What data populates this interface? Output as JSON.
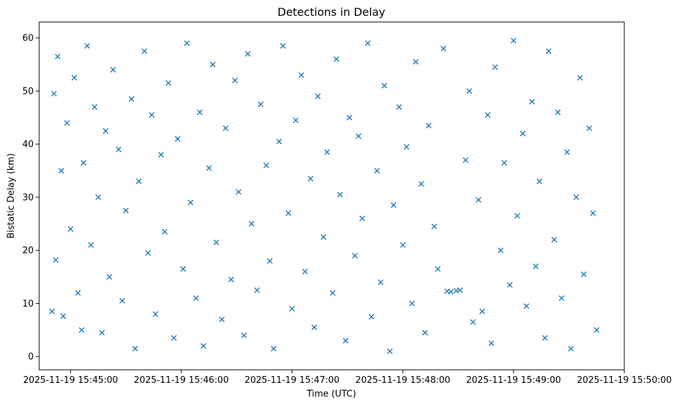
{
  "chart_data": {
    "type": "scatter",
    "title": "Detections in Delay",
    "xlabel": "Time (UTC)",
    "ylabel": "Bistatic Delay (km)",
    "x_axis_type": "datetime",
    "xlim": [
      "2025-11-19 15:44:43",
      "2025-11-19 15:50:00"
    ],
    "ylim": [
      -2.5,
      63
    ],
    "x_ticks": [
      "2025-11-19 15:45:00",
      "2025-11-19 15:46:00",
      "2025-11-19 15:47:00",
      "2025-11-19 15:48:00",
      "2025-11-19 15:49:00",
      "2025-11-19 15:50:00"
    ],
    "y_ticks": [
      "0",
      "10",
      "20",
      "30",
      "40",
      "50",
      "60"
    ],
    "grid": false,
    "marker": "x",
    "color": "#1f77b4",
    "series": [
      {
        "x": [
          "2025-11-19 15:44:50",
          "2025-11-19 15:44:51",
          "2025-11-19 15:44:52",
          "2025-11-19 15:44:53",
          "2025-11-19 15:44:55",
          "2025-11-19 15:44:56",
          "2025-11-19 15:44:58",
          "2025-11-19 15:45:00",
          "2025-11-19 15:45:02",
          "2025-11-19 15:45:04",
          "2025-11-19 15:45:06",
          "2025-11-19 15:45:07",
          "2025-11-19 15:45:09",
          "2025-11-19 15:45:11",
          "2025-11-19 15:45:13",
          "2025-11-19 15:45:15",
          "2025-11-19 15:45:17",
          "2025-11-19 15:45:19",
          "2025-11-19 15:45:21",
          "2025-11-19 15:45:23",
          "2025-11-19 15:45:26",
          "2025-11-19 15:45:28",
          "2025-11-19 15:45:30",
          "2025-11-19 15:45:33",
          "2025-11-19 15:45:35",
          "2025-11-19 15:45:37",
          "2025-11-19 15:45:40",
          "2025-11-19 15:45:42",
          "2025-11-19 15:45:44",
          "2025-11-19 15:45:46",
          "2025-11-19 15:45:49",
          "2025-11-19 15:45:51",
          "2025-11-19 15:45:53",
          "2025-11-19 15:45:56",
          "2025-11-19 15:45:58",
          "2025-11-19 15:46:01",
          "2025-11-19 15:46:03",
          "2025-11-19 15:46:05",
          "2025-11-19 15:46:08",
          "2025-11-19 15:46:10",
          "2025-11-19 15:46:12",
          "2025-11-19 15:46:15",
          "2025-11-19 15:46:17",
          "2025-11-19 15:46:19",
          "2025-11-19 15:46:22",
          "2025-11-19 15:46:24",
          "2025-11-19 15:46:27",
          "2025-11-19 15:46:29",
          "2025-11-19 15:46:31",
          "2025-11-19 15:46:34",
          "2025-11-19 15:46:36",
          "2025-11-19 15:46:38",
          "2025-11-19 15:46:41",
          "2025-11-19 15:46:43",
          "2025-11-19 15:46:46",
          "2025-11-19 15:46:48",
          "2025-11-19 15:46:50",
          "2025-11-19 15:46:53",
          "2025-11-19 15:46:55",
          "2025-11-19 15:46:58",
          "2025-11-19 15:47:00",
          "2025-11-19 15:47:02",
          "2025-11-19 15:47:05",
          "2025-11-19 15:47:07",
          "2025-11-19 15:47:10",
          "2025-11-19 15:47:12",
          "2025-11-19 15:47:14",
          "2025-11-19 15:47:17",
          "2025-11-19 15:47:19",
          "2025-11-19 15:47:22",
          "2025-11-19 15:47:24",
          "2025-11-19 15:47:26",
          "2025-11-19 15:47:29",
          "2025-11-19 15:47:31",
          "2025-11-19 15:47:34",
          "2025-11-19 15:47:36",
          "2025-11-19 15:47:38",
          "2025-11-19 15:47:41",
          "2025-11-19 15:47:43",
          "2025-11-19 15:47:46",
          "2025-11-19 15:47:48",
          "2025-11-19 15:47:50",
          "2025-11-19 15:47:53",
          "2025-11-19 15:47:55",
          "2025-11-19 15:47:58",
          "2025-11-19 15:48:00",
          "2025-11-19 15:48:02",
          "2025-11-19 15:48:05",
          "2025-11-19 15:48:07",
          "2025-11-19 15:48:10",
          "2025-11-19 15:48:12",
          "2025-11-19 15:48:14",
          "2025-11-19 15:48:17",
          "2025-11-19 15:48:19",
          "2025-11-19 15:48:22",
          "2025-11-19 15:48:24",
          "2025-11-19 15:48:26",
          "2025-11-19 15:48:29",
          "2025-11-19 15:48:31",
          "2025-11-19 15:48:34",
          "2025-11-19 15:48:36",
          "2025-11-19 15:48:38",
          "2025-11-19 15:48:41",
          "2025-11-19 15:48:43",
          "2025-11-19 15:48:46",
          "2025-11-19 15:48:48",
          "2025-11-19 15:48:50",
          "2025-11-19 15:48:53",
          "2025-11-19 15:48:55",
          "2025-11-19 15:48:58",
          "2025-11-19 15:49:00",
          "2025-11-19 15:49:02",
          "2025-11-19 15:49:05",
          "2025-11-19 15:49:07",
          "2025-11-19 15:49:10",
          "2025-11-19 15:49:12",
          "2025-11-19 15:49:14",
          "2025-11-19 15:49:17",
          "2025-11-19 15:49:19",
          "2025-11-19 15:49:22",
          "2025-11-19 15:49:24",
          "2025-11-19 15:49:26",
          "2025-11-19 15:49:29",
          "2025-11-19 15:49:31",
          "2025-11-19 15:49:34",
          "2025-11-19 15:49:36",
          "2025-11-19 15:49:38",
          "2025-11-19 15:49:41",
          "2025-11-19 15:49:43",
          "2025-11-19 15:49:45"
        ],
        "y": [
          8.5,
          49.5,
          18.2,
          56.5,
          35.0,
          7.6,
          44.0,
          24.0,
          52.5,
          12.0,
          5.0,
          36.5,
          58.5,
          21.0,
          47.0,
          30.0,
          4.5,
          42.5,
          15.0,
          54.0,
          39.0,
          10.5,
          27.5,
          48.5,
          1.5,
          33.0,
          57.5,
          19.5,
          45.5,
          8.0,
          38.0,
          23.5,
          51.5,
          3.5,
          41.0,
          16.5,
          59.0,
          29.0,
          11.0,
          46.0,
          2.0,
          35.5,
          55.0,
          21.5,
          7.0,
          43.0,
          14.5,
          52.0,
          31.0,
          4.0,
          57.0,
          25.0,
          12.5,
          47.5,
          36.0,
          18.0,
          1.5,
          40.5,
          58.5,
          27.0,
          9.0,
          44.5,
          53.0,
          16.0,
          33.5,
          5.5,
          49.0,
          22.5,
          38.5,
          12.0,
          56.0,
          30.5,
          3.0,
          45.0,
          19.0,
          41.5,
          26.0,
          59.0,
          7.5,
          35.0,
          14.0,
          51.0,
          1.0,
          28.5,
          47.0,
          21.0,
          39.5,
          10.0,
          55.5,
          32.5,
          4.5,
          43.5,
          24.5,
          16.5,
          58.0,
          12.3,
          12.2,
          12.4,
          12.5,
          37.0,
          50.0,
          6.5,
          29.5,
          8.5,
          45.5,
          2.5,
          54.5,
          20.0,
          36.5,
          13.5,
          59.5,
          26.5,
          42.0,
          9.5,
          48.0,
          17.0,
          33.0,
          3.5,
          57.5,
          22.0,
          46.0,
          11.0,
          38.5,
          1.5,
          30.0,
          52.5,
          15.5,
          43.0,
          27.0,
          5.0
        ]
      }
    ]
  }
}
